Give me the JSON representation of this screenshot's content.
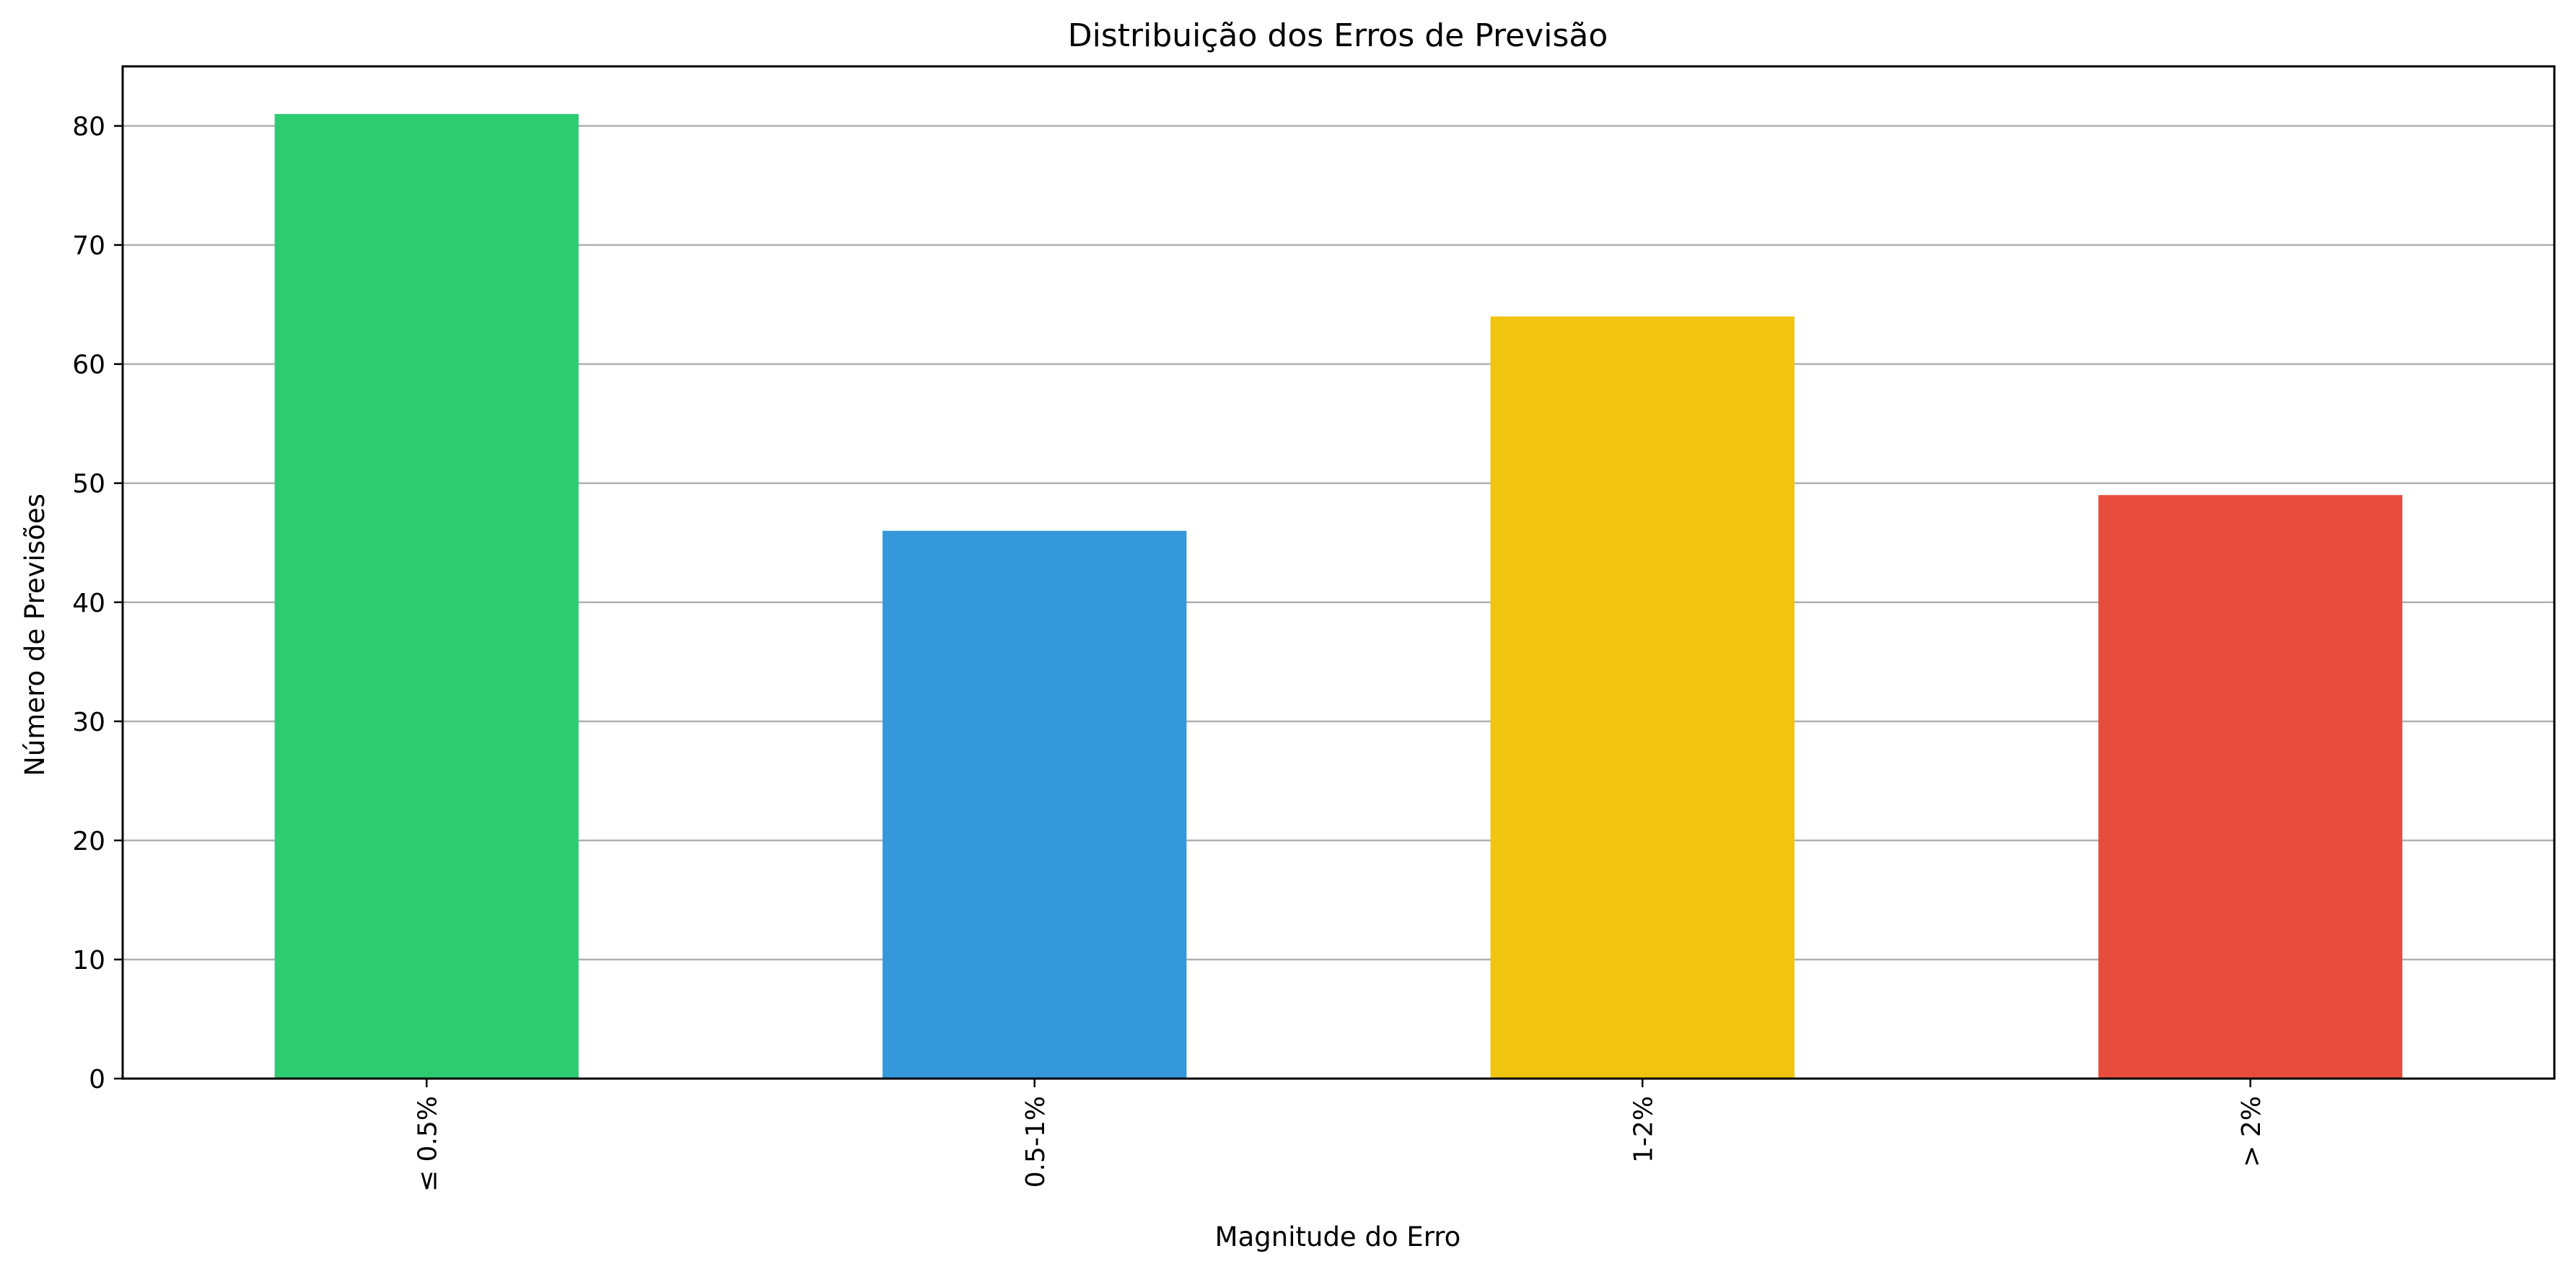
{
  "chart_data": {
    "type": "bar",
    "title": "Distribuição dos Erros de Previsão",
    "xlabel": "Magnitude do Erro",
    "ylabel": "Número de Previsões",
    "categories": [
      "≤ 0.5%",
      "0.5-1%",
      "1-2%",
      "> 2%"
    ],
    "values": [
      81,
      46,
      64,
      49
    ],
    "colors": [
      "#2ecc71",
      "#3498db",
      "#f1c40f",
      "#e74c3c"
    ],
    "ylim": [
      0,
      85
    ],
    "yticks": [
      0,
      10,
      20,
      30,
      40,
      50,
      60,
      70,
      80
    ],
    "grid": "horizontal",
    "xtick_rotation": "vertical",
    "legend": "none"
  }
}
